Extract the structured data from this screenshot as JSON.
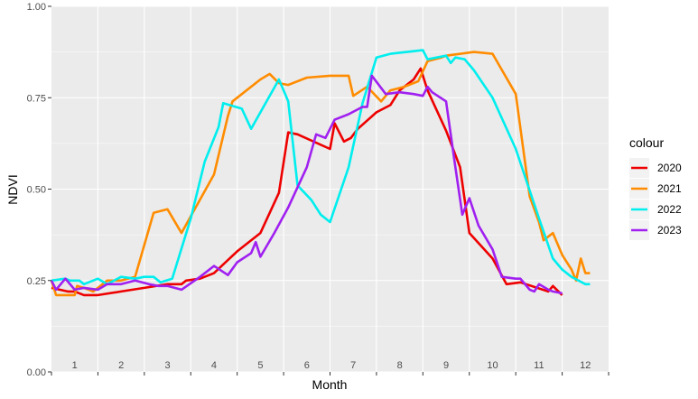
{
  "chart_data": {
    "type": "line",
    "xlabel": "Month",
    "ylabel": "NDVI",
    "x_tick_labels": [
      "1",
      "2",
      "3",
      "4",
      "5",
      "6",
      "7",
      "8",
      "9",
      "10",
      "11",
      "12"
    ],
    "xlim": [
      0.5,
      12.5
    ],
    "ylim": [
      0,
      1
    ],
    "y_ticks": [
      0,
      0.25,
      0.5,
      0.75,
      1
    ],
    "y_tick_labels": [
      "0.00",
      "0.25",
      "0.50",
      "0.75",
      "1.00"
    ],
    "grid": true,
    "legend_title": "colour",
    "legend_position": "right",
    "series": [
      {
        "name": "2020",
        "color": "#EE0000",
        "points": [
          [
            0.5,
            0.23
          ],
          [
            0.85,
            0.22
          ],
          [
            1.0,
            0.22
          ],
          [
            1.2,
            0.21
          ],
          [
            1.5,
            0.21
          ],
          [
            2.0,
            0.22
          ],
          [
            2.5,
            0.23
          ],
          [
            3.0,
            0.24
          ],
          [
            3.3,
            0.24
          ],
          [
            3.4,
            0.25
          ],
          [
            3.7,
            0.255
          ],
          [
            4.0,
            0.27
          ],
          [
            4.5,
            0.33
          ],
          [
            5.0,
            0.38
          ],
          [
            5.4,
            0.49
          ],
          [
            5.6,
            0.655
          ],
          [
            5.8,
            0.65
          ],
          [
            6.5,
            0.61
          ],
          [
            6.6,
            0.68
          ],
          [
            6.8,
            0.63
          ],
          [
            6.95,
            0.64
          ],
          [
            7.1,
            0.665
          ],
          [
            7.5,
            0.71
          ],
          [
            7.8,
            0.73
          ],
          [
            8.0,
            0.77
          ],
          [
            8.3,
            0.8
          ],
          [
            8.45,
            0.83
          ],
          [
            8.6,
            0.77
          ],
          [
            9.0,
            0.66
          ],
          [
            9.3,
            0.56
          ],
          [
            9.5,
            0.38
          ],
          [
            10.0,
            0.31
          ],
          [
            10.3,
            0.24
          ],
          [
            10.6,
            0.245
          ],
          [
            11.2,
            0.22
          ],
          [
            11.3,
            0.235
          ],
          [
            11.5,
            0.21
          ]
        ]
      },
      {
        "name": "2021",
        "color": "#FF8C00",
        "points": [
          [
            0.5,
            0.25
          ],
          [
            0.6,
            0.21
          ],
          [
            0.8,
            0.21
          ],
          [
            1.0,
            0.21
          ],
          [
            1.05,
            0.235
          ],
          [
            1.2,
            0.23
          ],
          [
            1.4,
            0.22
          ],
          [
            1.7,
            0.25
          ],
          [
            2.0,
            0.25
          ],
          [
            2.3,
            0.26
          ],
          [
            2.7,
            0.435
          ],
          [
            3.0,
            0.445
          ],
          [
            3.3,
            0.38
          ],
          [
            4.0,
            0.54
          ],
          [
            4.3,
            0.7
          ],
          [
            4.4,
            0.74
          ],
          [
            5.0,
            0.8
          ],
          [
            5.2,
            0.815
          ],
          [
            5.4,
            0.79
          ],
          [
            5.6,
            0.785
          ],
          [
            6.0,
            0.805
          ],
          [
            6.5,
            0.81
          ],
          [
            6.9,
            0.81
          ],
          [
            7.0,
            0.755
          ],
          [
            7.3,
            0.78
          ],
          [
            7.6,
            0.74
          ],
          [
            7.8,
            0.77
          ],
          [
            8.1,
            0.78
          ],
          [
            8.4,
            0.795
          ],
          [
            8.6,
            0.85
          ],
          [
            8.9,
            0.86
          ],
          [
            9.0,
            0.865
          ],
          [
            9.6,
            0.875
          ],
          [
            10.0,
            0.87
          ],
          [
            10.5,
            0.76
          ],
          [
            10.8,
            0.48
          ],
          [
            11.0,
            0.41
          ],
          [
            11.1,
            0.36
          ],
          [
            11.3,
            0.38
          ],
          [
            11.5,
            0.32
          ],
          [
            11.7,
            0.28
          ],
          [
            11.8,
            0.25
          ],
          [
            11.9,
            0.31
          ],
          [
            12.0,
            0.27
          ],
          [
            12.1,
            0.27
          ]
        ]
      },
      {
        "name": "2022",
        "color": "#00EEEE",
        "points": [
          [
            0.5,
            0.25
          ],
          [
            0.8,
            0.255
          ],
          [
            0.9,
            0.25
          ],
          [
            1.1,
            0.25
          ],
          [
            1.2,
            0.24
          ],
          [
            1.5,
            0.255
          ],
          [
            1.7,
            0.24
          ],
          [
            2.0,
            0.26
          ],
          [
            2.3,
            0.255
          ],
          [
            2.5,
            0.26
          ],
          [
            2.7,
            0.26
          ],
          [
            2.85,
            0.245
          ],
          [
            3.1,
            0.255
          ],
          [
            3.5,
            0.42
          ],
          [
            3.8,
            0.575
          ],
          [
            4.1,
            0.67
          ],
          [
            4.2,
            0.735
          ],
          [
            4.6,
            0.72
          ],
          [
            4.8,
            0.665
          ],
          [
            5.4,
            0.8
          ],
          [
            5.6,
            0.74
          ],
          [
            5.8,
            0.51
          ],
          [
            6.1,
            0.47
          ],
          [
            6.3,
            0.43
          ],
          [
            6.5,
            0.41
          ],
          [
            6.9,
            0.56
          ],
          [
            7.2,
            0.735
          ],
          [
            7.5,
            0.86
          ],
          [
            7.8,
            0.87
          ],
          [
            8.5,
            0.88
          ],
          [
            8.6,
            0.855
          ],
          [
            8.8,
            0.86
          ],
          [
            9.0,
            0.865
          ],
          [
            9.1,
            0.845
          ],
          [
            9.2,
            0.86
          ],
          [
            9.4,
            0.855
          ],
          [
            9.6,
            0.825
          ],
          [
            10.0,
            0.75
          ],
          [
            10.5,
            0.61
          ],
          [
            11.0,
            0.42
          ],
          [
            11.3,
            0.31
          ],
          [
            11.5,
            0.28
          ],
          [
            11.7,
            0.26
          ],
          [
            12.0,
            0.24
          ],
          [
            12.1,
            0.24
          ]
        ]
      },
      {
        "name": "2023",
        "color": "#A020F0",
        "points": [
          [
            0.5,
            0.25
          ],
          [
            0.6,
            0.225
          ],
          [
            0.8,
            0.255
          ],
          [
            1.0,
            0.225
          ],
          [
            1.2,
            0.23
          ],
          [
            1.5,
            0.225
          ],
          [
            1.7,
            0.24
          ],
          [
            2.0,
            0.24
          ],
          [
            2.3,
            0.25
          ],
          [
            2.6,
            0.24
          ],
          [
            2.8,
            0.235
          ],
          [
            3.0,
            0.235
          ],
          [
            3.3,
            0.225
          ],
          [
            3.7,
            0.26
          ],
          [
            4.0,
            0.29
          ],
          [
            4.3,
            0.265
          ],
          [
            4.5,
            0.3
          ],
          [
            4.8,
            0.325
          ],
          [
            4.9,
            0.355
          ],
          [
            5.0,
            0.315
          ],
          [
            5.3,
            0.38
          ],
          [
            5.6,
            0.45
          ],
          [
            6.0,
            0.56
          ],
          [
            6.2,
            0.65
          ],
          [
            6.4,
            0.64
          ],
          [
            6.6,
            0.69
          ],
          [
            6.9,
            0.705
          ],
          [
            7.2,
            0.725
          ],
          [
            7.3,
            0.725
          ],
          [
            7.4,
            0.81
          ],
          [
            7.7,
            0.76
          ],
          [
            8.0,
            0.765
          ],
          [
            8.3,
            0.76
          ],
          [
            8.5,
            0.755
          ],
          [
            8.6,
            0.78
          ],
          [
            8.7,
            0.765
          ],
          [
            9.0,
            0.74
          ],
          [
            9.2,
            0.56
          ],
          [
            9.35,
            0.43
          ],
          [
            9.5,
            0.475
          ],
          [
            9.7,
            0.4
          ],
          [
            10.0,
            0.335
          ],
          [
            10.2,
            0.26
          ],
          [
            10.5,
            0.255
          ],
          [
            10.6,
            0.255
          ],
          [
            10.8,
            0.225
          ],
          [
            10.9,
            0.22
          ],
          [
            11.0,
            0.24
          ],
          [
            11.2,
            0.225
          ],
          [
            11.3,
            0.22
          ],
          [
            11.5,
            0.215
          ]
        ]
      }
    ]
  }
}
